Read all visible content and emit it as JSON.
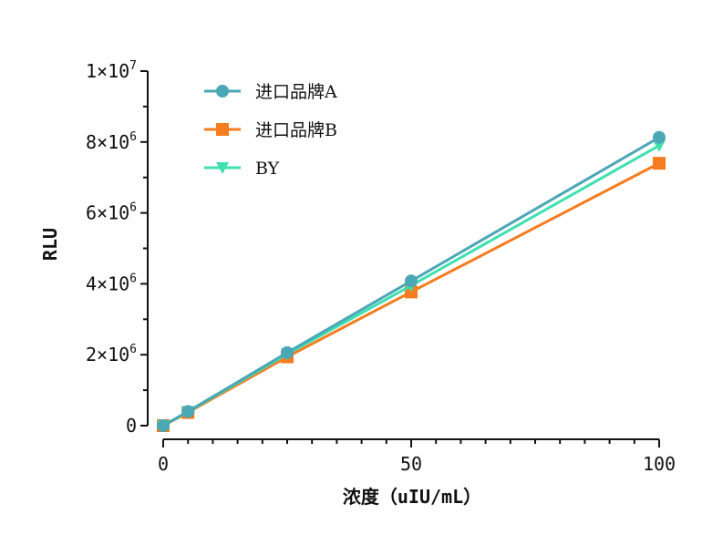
{
  "chart_data": {
    "type": "line",
    "title": "",
    "xlabel": "浓度（uIU/mL）",
    "ylabel": "RLU",
    "xlim": [
      0,
      100
    ],
    "ylim": [
      0,
      10000000
    ],
    "x_ticks": [
      {
        "value": 0,
        "label": "0"
      },
      {
        "value": 50,
        "label": "50"
      },
      {
        "value": 100,
        "label": "100"
      }
    ],
    "y_ticks": [
      {
        "value": 0,
        "mant": "0",
        "exp": ""
      },
      {
        "value": 2000000,
        "mant": "2×10",
        "exp": "6"
      },
      {
        "value": 4000000,
        "mant": "4×10",
        "exp": "6"
      },
      {
        "value": 6000000,
        "mant": "6×10",
        "exp": "6"
      },
      {
        "value": 8000000,
        "mant": "8×10",
        "exp": "6"
      },
      {
        "value": 10000000,
        "mant": "1×10",
        "exp": "7"
      }
    ],
    "legend_position": "top-left",
    "grid": false,
    "x": [
      0,
      5,
      25,
      50,
      100
    ],
    "series": [
      {
        "name": "进口品牌A",
        "color": "#4aa7b5",
        "marker": "circle",
        "values": [
          0,
          400000,
          2060000,
          4080000,
          8130000
        ]
      },
      {
        "name": "进口品牌B",
        "color": "#f57c1f",
        "marker": "square",
        "values": [
          0,
          370000,
          1940000,
          3770000,
          7400000
        ]
      },
      {
        "name": "BY",
        "color": "#3ee0b0",
        "marker": "triangle-down",
        "values": [
          0,
          390000,
          2020000,
          3950000,
          7900000
        ]
      }
    ]
  }
}
